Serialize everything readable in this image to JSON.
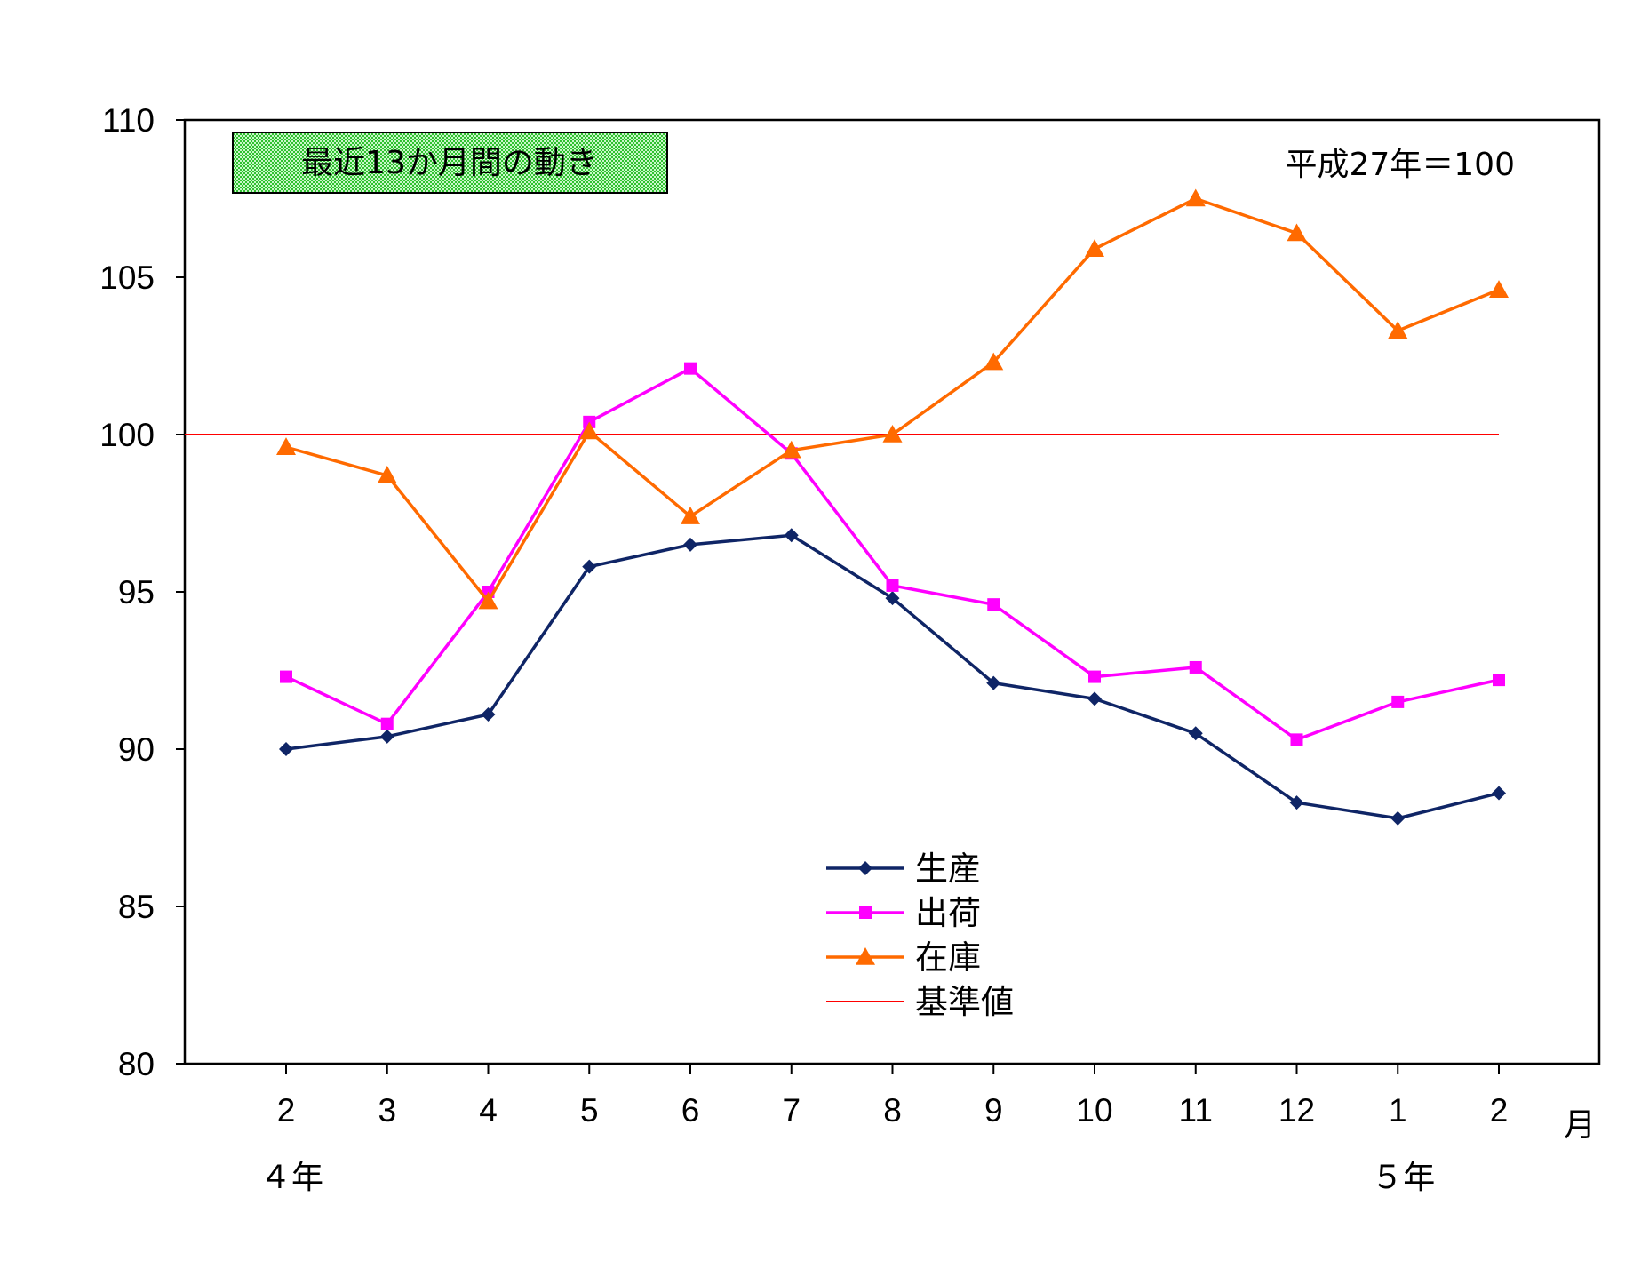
{
  "chart_data": {
    "type": "line",
    "title_box": "最近13か月間の動き",
    "base_note": "平成27年＝100",
    "categories": [
      "2",
      "3",
      "4",
      "5",
      "6",
      "7",
      "8",
      "9",
      "10",
      "11",
      "12",
      "1",
      "2"
    ],
    "x_unit": "月",
    "year_labels": [
      {
        "label": "４年",
        "index": 0
      },
      {
        "label": "５年",
        "index": 11
      }
    ],
    "ylim": [
      80,
      110
    ],
    "yticks": [
      80,
      85,
      90,
      95,
      100,
      105,
      110
    ],
    "grid": false,
    "legend_position": "center-bottom",
    "series": [
      {
        "name": "生産",
        "color": "#0f2566",
        "marker": "diamond",
        "values": [
          90.0,
          90.4,
          91.1,
          95.8,
          96.5,
          96.8,
          94.8,
          92.1,
          91.6,
          90.5,
          88.3,
          87.8,
          88.6
        ]
      },
      {
        "name": "出荷",
        "color": "#ff00ff",
        "marker": "square",
        "values": [
          92.3,
          90.8,
          95.0,
          100.4,
          102.1,
          99.4,
          95.2,
          94.6,
          92.3,
          92.6,
          90.3,
          91.5,
          92.2
        ]
      },
      {
        "name": "在庫",
        "color": "#ff6a00",
        "marker": "triangle",
        "values": [
          99.6,
          98.7,
          94.7,
          100.1,
          97.4,
          99.5,
          100.0,
          102.3,
          105.9,
          107.5,
          106.4,
          103.3,
          104.6
        ]
      }
    ],
    "reference_line": {
      "name": "基準値",
      "value": 100,
      "color": "#ff0000"
    }
  }
}
